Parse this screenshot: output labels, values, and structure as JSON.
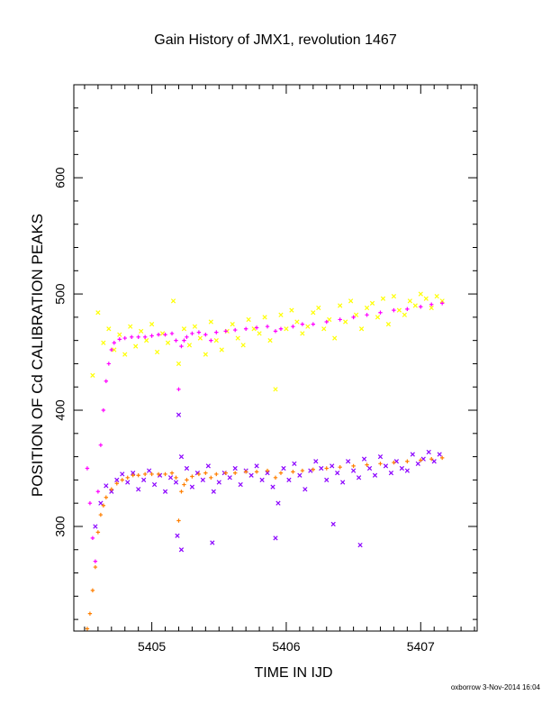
{
  "chart_data": {
    "type": "scatter",
    "title": "Gain History of JMX1, revolution 1467",
    "xlabel": "TIME IN IJD",
    "ylabel": "POSITION OF Cd CALIBRATION PEAKS",
    "xlim": [
      5404.42,
      5407.42
    ],
    "ylim": [
      210,
      680
    ],
    "xticks": [
      5405,
      5406,
      5407
    ],
    "xtick_labels": [
      "5405",
      "5406",
      "5407"
    ],
    "yticks": [
      300,
      400,
      500,
      600
    ],
    "ytick_labels": [
      "300",
      "400",
      "500",
      "600"
    ],
    "grid": false,
    "legend": "none",
    "series": [
      {
        "color": "#ffff00",
        "marker": "x",
        "x": [
          5404.56,
          5404.6,
          5404.64,
          5404.68,
          5404.72,
          5404.76,
          5404.8,
          5404.84,
          5404.88,
          5404.92,
          5404.96,
          5405.0,
          5405.04,
          5405.08,
          5405.12,
          5405.16,
          5405.2,
          5405.24,
          5405.28,
          5405.32,
          5405.36,
          5405.4,
          5405.44,
          5405.48,
          5405.52,
          5405.56,
          5405.6,
          5405.64,
          5405.68,
          5405.72,
          5405.76,
          5405.8,
          5405.84,
          5405.88,
          5405.92,
          5405.96,
          5406.0,
          5406.04,
          5406.08,
          5406.12,
          5406.16,
          5406.2,
          5406.24,
          5406.28,
          5406.32,
          5406.36,
          5406.4,
          5406.44,
          5406.48,
          5406.52,
          5406.56,
          5406.6,
          5406.64,
          5406.68,
          5406.72,
          5406.76,
          5406.8,
          5406.84,
          5406.88,
          5406.92,
          5406.96,
          5407.0,
          5407.04,
          5407.08,
          5407.12,
          5407.16
        ],
        "y": [
          430,
          484,
          458,
          470,
          452,
          465,
          448,
          472,
          455,
          468,
          460,
          474,
          450,
          466,
          458,
          494,
          440,
          470,
          456,
          472,
          462,
          448,
          476,
          460,
          452,
          468,
          474,
          462,
          456,
          478,
          470,
          466,
          480,
          460,
          418,
          482,
          470,
          486,
          476,
          466,
          472,
          484,
          488,
          470,
          478,
          462,
          490,
          476,
          494,
          482,
          470,
          488,
          492,
          480,
          496,
          474,
          498,
          486,
          482,
          494,
          490,
          500,
          496,
          488,
          498,
          494
        ]
      },
      {
        "color": "#ff00ff",
        "marker": "+",
        "x": [
          5404.52,
          5404.54,
          5404.56,
          5404.58,
          5404.6,
          5404.62,
          5404.64,
          5404.66,
          5404.68,
          5404.7,
          5404.72,
          5404.76,
          5404.8,
          5404.85,
          5404.9,
          5404.95,
          5405.0,
          5405.05,
          5405.1,
          5405.15,
          5405.18,
          5405.2,
          5405.22,
          5405.24,
          5405.26,
          5405.3,
          5405.35,
          5405.4,
          5405.44,
          5405.48,
          5405.55,
          5405.62,
          5405.7,
          5405.78,
          5405.86,
          5405.92,
          5405.96,
          5406.05,
          5406.12,
          5406.2,
          5406.3,
          5406.4,
          5406.5,
          5406.6,
          5406.7,
          5406.8,
          5406.9,
          5407.0,
          5407.08,
          5407.16
        ],
        "y": [
          350,
          320,
          290,
          270,
          330,
          370,
          400,
          425,
          440,
          452,
          458,
          461,
          462,
          463,
          463,
          463,
          464,
          465,
          465,
          466,
          460,
          418,
          455,
          460,
          463,
          466,
          467,
          465,
          460,
          467,
          468,
          469,
          470,
          471,
          472,
          468,
          470,
          472,
          474,
          474,
          476,
          478,
          480,
          482,
          484,
          486,
          487,
          489,
          491,
          492
        ]
      },
      {
        "color": "#8b00ff",
        "marker": "x",
        "x": [
          5404.58,
          5404.62,
          5404.66,
          5404.7,
          5404.74,
          5404.78,
          5404.82,
          5404.86,
          5404.9,
          5404.94,
          5404.98,
          5405.02,
          5405.06,
          5405.1,
          5405.14,
          5405.18,
          5405.22,
          5405.26,
          5405.3,
          5405.34,
          5405.38,
          5405.42,
          5405.46,
          5405.5,
          5405.54,
          5405.58,
          5405.62,
          5405.66,
          5405.7,
          5405.74,
          5405.78,
          5405.82,
          5405.86,
          5405.9,
          5405.94,
          5405.98,
          5406.02,
          5406.06,
          5406.1,
          5406.14,
          5406.18,
          5406.22,
          5406.26,
          5406.3,
          5406.34,
          5406.38,
          5406.42,
          5406.46,
          5406.5,
          5406.54,
          5406.58,
          5406.62,
          5406.66,
          5406.7,
          5406.74,
          5406.78,
          5406.82,
          5406.86,
          5406.9,
          5406.94,
          5406.98,
          5407.02,
          5407.06,
          5407.1,
          5407.14,
          5405.19,
          5405.22,
          5405.45,
          5405.92,
          5406.35,
          5406.55,
          5405.2
        ],
        "y": [
          300,
          320,
          335,
          330,
          340,
          345,
          338,
          346,
          332,
          340,
          348,
          336,
          344,
          330,
          342,
          338,
          360,
          350,
          334,
          346,
          340,
          352,
          330,
          338,
          346,
          342,
          350,
          336,
          348,
          344,
          352,
          340,
          346,
          334,
          320,
          350,
          340,
          354,
          344,
          332,
          348,
          356,
          350,
          340,
          352,
          346,
          338,
          356,
          348,
          342,
          358,
          350,
          344,
          360,
          352,
          346,
          356,
          350,
          348,
          362,
          354,
          358,
          364,
          356,
          362,
          292,
          280,
          286,
          290,
          302,
          284,
          396
        ]
      },
      {
        "color": "#ff7f00",
        "marker": "+",
        "x": [
          5404.52,
          5404.54,
          5404.56,
          5404.58,
          5404.6,
          5404.62,
          5404.64,
          5404.66,
          5404.7,
          5404.74,
          5404.78,
          5404.82,
          5404.86,
          5404.9,
          5404.95,
          5405.0,
          5405.05,
          5405.1,
          5405.15,
          5405.18,
          5405.2,
          5405.22,
          5405.24,
          5405.26,
          5405.3,
          5405.35,
          5405.4,
          5405.44,
          5405.48,
          5405.55,
          5405.62,
          5405.7,
          5405.78,
          5405.86,
          5405.92,
          5405.96,
          5406.05,
          5406.12,
          5406.2,
          5406.3,
          5406.4,
          5406.5,
          5406.6,
          5406.7,
          5406.8,
          5406.9,
          5407.0,
          5407.08,
          5407.16
        ],
        "y": [
          212,
          225,
          245,
          265,
          295,
          310,
          318,
          325,
          332,
          337,
          340,
          342,
          344,
          344,
          345,
          345,
          345,
          345,
          346,
          342,
          305,
          330,
          336,
          340,
          343,
          345,
          346,
          342,
          345,
          346,
          346,
          347,
          347,
          348,
          342,
          346,
          347,
          348,
          349,
          350,
          351,
          352,
          353,
          354,
          355,
          356,
          357,
          358,
          359
        ]
      }
    ]
  },
  "footer": "oxborrow  3-Nov-2014 16:04"
}
